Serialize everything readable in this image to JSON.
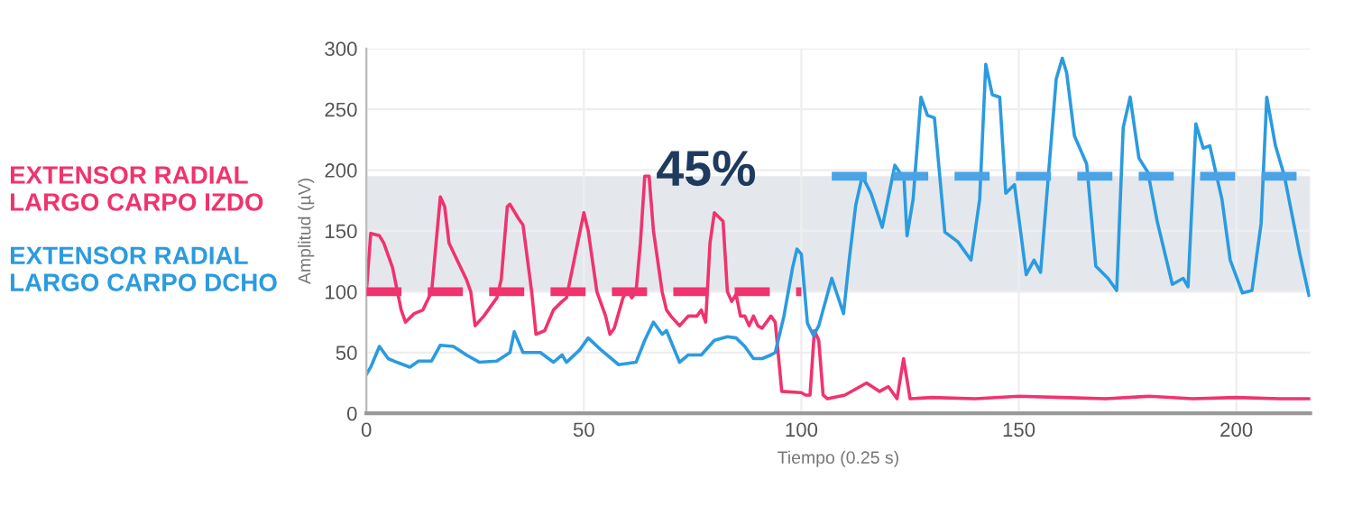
{
  "chart_data": {
    "type": "line",
    "xlabel": "Tiempo (0.25 s)",
    "ylabel": "Amplitud (µV)",
    "xlim": [
      0,
      217
    ],
    "ylim": [
      0,
      300
    ],
    "xticks": [
      0,
      50,
      100,
      150,
      200
    ],
    "yticks": [
      0,
      50,
      100,
      150,
      200,
      250,
      300
    ],
    "grid": true,
    "legend": "left",
    "line_style": "solid",
    "marker": "none",
    "annotations": [
      "45%"
    ],
    "bands": [
      {
        "axis": "y",
        "from": 100,
        "to": 195,
        "color": "#e4e8ec"
      }
    ],
    "series": [
      {
        "name": "EXTENSOR RADIAL\nLARGO CARPO IZDO",
        "color": "#f0336e",
        "x": [
          0,
          1,
          3,
          4,
          6,
          8,
          9,
          11,
          13,
          15,
          17,
          18,
          19,
          21,
          23,
          24,
          25,
          27,
          29,
          30,
          31,
          32.4,
          33,
          35,
          36,
          38,
          39,
          41,
          43,
          45,
          46,
          48,
          50,
          51,
          53,
          55,
          56,
          57,
          59,
          60,
          61,
          62,
          63,
          64,
          65,
          66,
          68,
          69,
          70,
          72,
          74,
          76,
          77,
          78,
          79,
          80,
          82,
          83,
          84,
          85,
          86,
          87,
          88,
          89,
          90,
          91,
          93,
          94,
          95.5,
          100,
          101,
          102,
          103,
          104,
          105,
          106,
          110,
          115,
          118,
          120,
          122,
          123.5,
          125,
          130,
          140,
          150,
          160,
          170,
          180,
          190,
          200,
          210,
          217
        ],
        "values": [
          100,
          148,
          146,
          140,
          120,
          85,
          75,
          82,
          85,
          100,
          178,
          170,
          140,
          125,
          110,
          100,
          72,
          80,
          90,
          95,
          110,
          170,
          172,
          160,
          155,
          100,
          65,
          68,
          85,
          92,
          95,
          130,
          165,
          150,
          100,
          80,
          65,
          70,
          95,
          102,
          95,
          100,
          140,
          195,
          195,
          150,
          100,
          85,
          80,
          72,
          80,
          80,
          85,
          75,
          140,
          165,
          158,
          100,
          92,
          98,
          80,
          80,
          72,
          80,
          72,
          70,
          80,
          75,
          18,
          17,
          15,
          15,
          68,
          60,
          15,
          12,
          15,
          25,
          18,
          22,
          12,
          45,
          12,
          13,
          12,
          14,
          13,
          12,
          14,
          12,
          13,
          12,
          12
        ]
      },
      {
        "name": "EXTENSOR RADIAL\nLARGO CARPO DCHO",
        "color": "#2b9be0",
        "x": [
          0,
          1,
          3,
          5,
          7,
          10,
          12,
          15,
          17,
          20,
          23,
          26,
          30,
          33,
          34,
          36,
          40,
          43,
          45,
          46,
          49,
          51,
          54,
          58,
          62,
          64,
          66,
          68,
          69,
          72,
          74,
          77,
          80,
          83,
          85,
          87,
          89,
          91,
          93,
          94,
          96,
          98,
          99,
          100,
          101.4,
          102.8,
          104,
          107,
          109.7,
          111,
          112.5,
          114,
          116,
          118.6,
          121.5,
          123.6,
          124.3,
          125.7,
          127.5,
          129,
          130.6,
          133,
          136,
          139,
          141,
          142.4,
          143.9,
          145.6,
          147,
          149,
          151.7,
          153.5,
          155,
          158.6,
          160,
          161,
          162.8,
          165.6,
          167.7,
          170.5,
          172.5,
          174,
          175.6,
          177.6,
          179.7,
          181.8,
          185.3,
          187.8,
          188.9,
          190.7,
          192.4,
          193.9,
          196.7,
          198.6,
          201.4,
          203.6,
          205.7,
          207,
          209,
          211,
          214.6,
          216.7
        ],
        "values": [
          32,
          38,
          55,
          45,
          42,
          38,
          43,
          43,
          56,
          55,
          48,
          42,
          43,
          50,
          67,
          50,
          50,
          42,
          48,
          42,
          52,
          62,
          52,
          40,
          42,
          60,
          75,
          65,
          68,
          42,
          48,
          48,
          60,
          63,
          62,
          55,
          45,
          45,
          48,
          50,
          80,
          120,
          135,
          131,
          74,
          64,
          72,
          111,
          82,
          126,
          171,
          195,
          181,
          153,
          204,
          193,
          146,
          176,
          260,
          245,
          243,
          149,
          141,
          126,
          176,
          287,
          262,
          260,
          181,
          188,
          114,
          126,
          116,
          275,
          292,
          280,
          228,
          205,
          121,
          111,
          101,
          235,
          260,
          210,
          198,
          158,
          106,
          111,
          104,
          238,
          218,
          220,
          176,
          126,
          99,
          101,
          156,
          260,
          220,
          196,
          131,
          97
        ]
      },
      {
        "color": "#f0336e",
        "line_style": "dashed",
        "x": [
          0,
          100
        ],
        "values": [
          100,
          100
        ]
      },
      {
        "color": "#4aa3e6",
        "line_style": "dashed",
        "x": [
          107,
          217
        ],
        "values": [
          195,
          195
        ]
      }
    ]
  }
}
